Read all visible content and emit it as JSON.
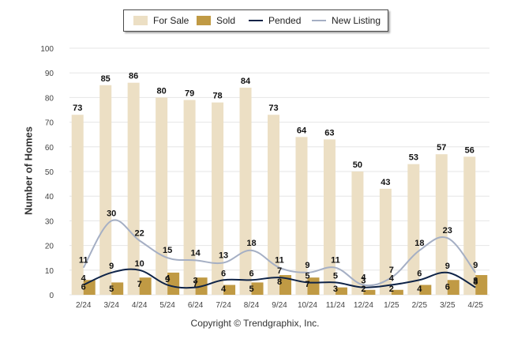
{
  "chart_data": {
    "type": "bar",
    "categories": [
      "2/24",
      "3/24",
      "4/24",
      "5/24",
      "6/24",
      "7/24",
      "8/24",
      "9/24",
      "10/24",
      "11/24",
      "12/24",
      "1/25",
      "2/25",
      "3/25",
      "4/25"
    ],
    "series": [
      {
        "name": "For Sale",
        "kind": "bar",
        "color": "#ecdfc4",
        "values": [
          73,
          85,
          86,
          80,
          79,
          78,
          84,
          73,
          64,
          63,
          50,
          43,
          53,
          57,
          56
        ]
      },
      {
        "name": "Sold",
        "kind": "bar",
        "color": "#c09a44",
        "values": [
          6,
          5,
          7,
          9,
          7,
          4,
          5,
          8,
          7,
          3,
          2,
          2,
          4,
          6,
          8
        ]
      },
      {
        "name": "Pended",
        "kind": "line",
        "color": "#0e2347",
        "values": [
          4,
          9,
          10,
          4,
          3,
          6,
          6,
          7,
          5,
          5,
          3,
          4,
          6,
          9,
          3
        ]
      },
      {
        "name": "New Listing",
        "kind": "line",
        "color": "#a5afc4",
        "values": [
          11,
          30,
          22,
          15,
          14,
          13,
          18,
          11,
          9,
          11,
          4,
          7,
          18,
          23,
          9
        ]
      }
    ],
    "ylabel": "Number of Homes",
    "xlabel": "",
    "ylim": [
      0,
      100
    ],
    "yticks": [
      0,
      10,
      20,
      30,
      40,
      50,
      60,
      70,
      80,
      90,
      100
    ],
    "grid": true,
    "legend_position": "top-center"
  },
  "copyright": "Copyright © Trendgraphix, Inc."
}
